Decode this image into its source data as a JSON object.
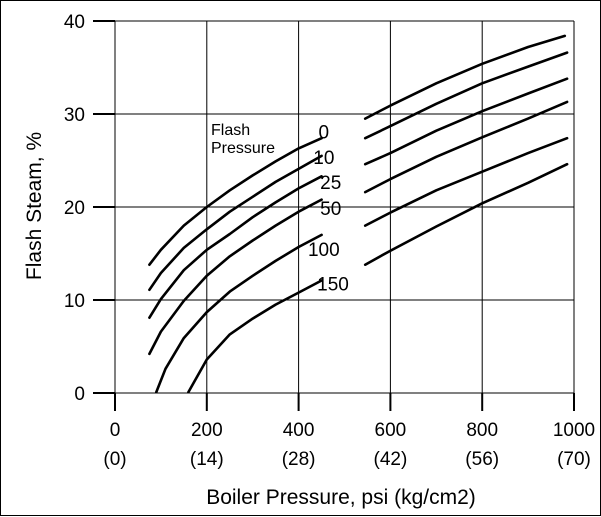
{
  "chart_data": {
    "type": "line",
    "title": "",
    "xlabel": "Boiler Pressure, psi (kg/cm2)",
    "ylabel": "Flash Steam, %",
    "xlim": [
      0,
      1000
    ],
    "ylim": [
      0,
      40
    ],
    "x_ticks": [
      {
        "value": 0,
        "label": "0",
        "sublabel": "(0)"
      },
      {
        "value": 200,
        "label": "200",
        "sublabel": "(14)"
      },
      {
        "value": 400,
        "label": "400",
        "sublabel": "(28)"
      },
      {
        "value": 600,
        "label": "600",
        "sublabel": "(42)"
      },
      {
        "value": 800,
        "label": "800",
        "sublabel": "(56)"
      },
      {
        "value": 1000,
        "label": "1000",
        "sublabel": "(70)"
      }
    ],
    "y_ticks": [
      {
        "value": 0,
        "label": "0"
      },
      {
        "value": 10,
        "label": "10"
      },
      {
        "value": 20,
        "label": "20"
      },
      {
        "value": 30,
        "label": "30"
      },
      {
        "value": 40,
        "label": "40"
      }
    ],
    "grid": true,
    "annotation": [
      "Flash",
      "Pressure"
    ],
    "series": [
      {
        "name": "0",
        "label_xy": [
          455,
          28.1
        ],
        "segments": [
          [
            [
              75,
              13.8
            ],
            [
              100,
              15.4
            ],
            [
              150,
              18.0
            ],
            [
              200,
              20.0
            ],
            [
              250,
              21.8
            ],
            [
              300,
              23.4
            ],
            [
              350,
              24.9
            ],
            [
              400,
              26.3
            ],
            [
              450,
              27.4
            ]
          ],
          [
            [
              545,
              29.5
            ],
            [
              600,
              30.9
            ],
            [
              700,
              33.3
            ],
            [
              800,
              35.4
            ],
            [
              900,
              37.2
            ],
            [
              980,
              38.4
            ]
          ]
        ]
      },
      {
        "name": "10",
        "label_xy": [
          455,
          25.4
        ],
        "segments": [
          [
            [
              75,
              11.1
            ],
            [
              100,
              12.9
            ],
            [
              150,
              15.6
            ],
            [
              200,
              17.6
            ],
            [
              250,
              19.5
            ],
            [
              300,
              21.1
            ],
            [
              350,
              22.7
            ],
            [
              400,
              24.1
            ],
            [
              450,
              25.5
            ]
          ],
          [
            [
              545,
              27.4
            ],
            [
              600,
              28.7
            ],
            [
              700,
              31.1
            ],
            [
              800,
              33.3
            ],
            [
              900,
              35.1
            ],
            [
              985,
              36.6
            ]
          ]
        ]
      },
      {
        "name": "25",
        "label_xy": [
          470,
          22.7
        ],
        "segments": [
          [
            [
              75,
              8.1
            ],
            [
              100,
              10.1
            ],
            [
              150,
              13.2
            ],
            [
              200,
              15.4
            ],
            [
              250,
              17.1
            ],
            [
              300,
              18.9
            ],
            [
              350,
              20.5
            ],
            [
              400,
              22.0
            ],
            [
              450,
              23.3
            ]
          ],
          [
            [
              545,
              24.6
            ],
            [
              600,
              25.8
            ],
            [
              700,
              28.2
            ],
            [
              800,
              30.3
            ],
            [
              900,
              32.2
            ],
            [
              985,
              33.8
            ]
          ]
        ]
      },
      {
        "name": "50",
        "label_xy": [
          470,
          19.9
        ],
        "segments": [
          [
            [
              75,
              4.2
            ],
            [
              100,
              6.6
            ],
            [
              150,
              9.9
            ],
            [
              200,
              12.6
            ],
            [
              250,
              14.7
            ],
            [
              300,
              16.4
            ],
            [
              350,
              18.0
            ],
            [
              400,
              19.5
            ],
            [
              450,
              20.8
            ]
          ],
          [
            [
              545,
              21.6
            ],
            [
              600,
              23.0
            ],
            [
              700,
              25.4
            ],
            [
              800,
              27.5
            ],
            [
              900,
              29.5
            ],
            [
              985,
              31.3
            ]
          ]
        ]
      },
      {
        "name": "100",
        "label_xy": [
          455,
          15.5
        ],
        "segments": [
          [
            [
              90,
              0.1
            ],
            [
              110,
              2.6
            ],
            [
              150,
              5.9
            ],
            [
              200,
              8.7
            ],
            [
              250,
              10.9
            ],
            [
              300,
              12.6
            ],
            [
              350,
              14.2
            ],
            [
              400,
              15.7
            ],
            [
              450,
              17.0
            ]
          ],
          [
            [
              545,
              18.0
            ],
            [
              600,
              19.4
            ],
            [
              700,
              21.8
            ],
            [
              800,
              23.8
            ],
            [
              900,
              25.8
            ],
            [
              985,
              27.4
            ]
          ]
        ]
      },
      {
        "name": "150",
        "label_xy": [
          475,
          11.8
        ],
        "segments": [
          [
            [
              160,
              0.1
            ],
            [
              200,
              3.6
            ],
            [
              250,
              6.3
            ],
            [
              300,
              8.0
            ],
            [
              350,
              9.5
            ],
            [
              400,
              10.8
            ],
            [
              450,
              12.1
            ]
          ],
          [
            [
              545,
              13.8
            ],
            [
              600,
              15.3
            ],
            [
              700,
              17.9
            ],
            [
              800,
              20.4
            ],
            [
              900,
              22.6
            ],
            [
              985,
              24.6
            ]
          ]
        ]
      }
    ]
  }
}
